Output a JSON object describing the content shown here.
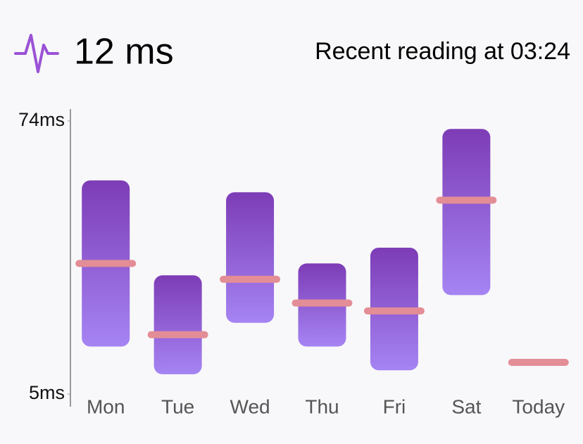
{
  "header": {
    "value": "12 ms",
    "reading": "Recent reading at 03:24"
  },
  "chart_data": {
    "type": "range",
    "categories": [
      "Mon",
      "Tue",
      "Wed",
      "Thu",
      "Fri",
      "Sat",
      "Today"
    ],
    "high": [
      59,
      35,
      56,
      38,
      42,
      72,
      null
    ],
    "low": [
      17,
      10,
      23,
      17,
      11,
      30,
      null
    ],
    "average": [
      38,
      20,
      34,
      28,
      26,
      54,
      13
    ],
    "color": "#8a4fcc",
    "average_color": "#e38d96",
    "ylim": [
      5,
      74
    ],
    "yticks": [
      {
        "value": 5,
        "label": "5ms"
      },
      {
        "value": 74,
        "label": "74ms"
      }
    ]
  }
}
